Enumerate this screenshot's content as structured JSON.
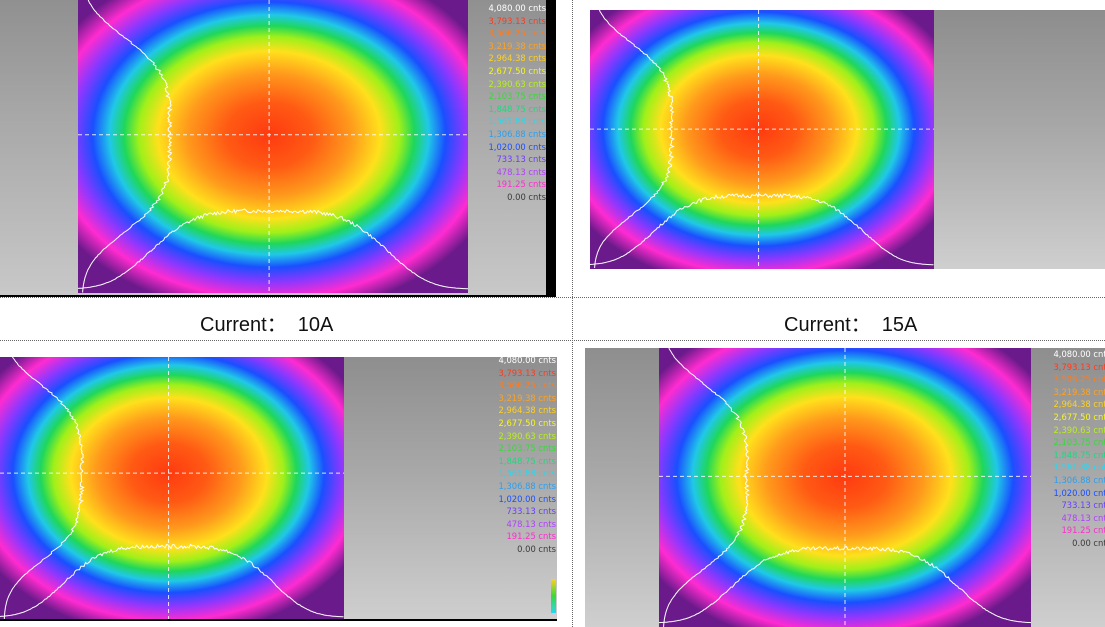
{
  "captions": {
    "c1": "Current：  10A",
    "c2": "Current：  15A"
  },
  "legend_values": [
    "4,080.00 cnts",
    "3,793.13 cnts",
    "3,506.25 cnts",
    "3,219.38 cnts",
    "2,964.38 cnts",
    "2,677.50 cnts",
    "2,390.63 cnts",
    "2,103.75 cnts",
    "1,848.75 cnts",
    "1,561.88 cnts",
    "1,306.88 cnts",
    "1,020.00 cnts",
    "733.13 cnts",
    "478.13 cnts",
    "191.25 cnts",
    "0.00 cnts"
  ],
  "legend_colors": [
    "#ffffff",
    "#ff3a1a",
    "#ff7d1f",
    "#ffa21f",
    "#ffd11f",
    "#f6f61e",
    "#b8f01c",
    "#38d93a",
    "#1fd77f",
    "#28d7ef",
    "#2aa0ef",
    "#1a4fff",
    "#6a3dff",
    "#b33dff",
    "#ff2bd0",
    "#9a1fa8"
  ],
  "zero_color": "#3a3a3a"
}
